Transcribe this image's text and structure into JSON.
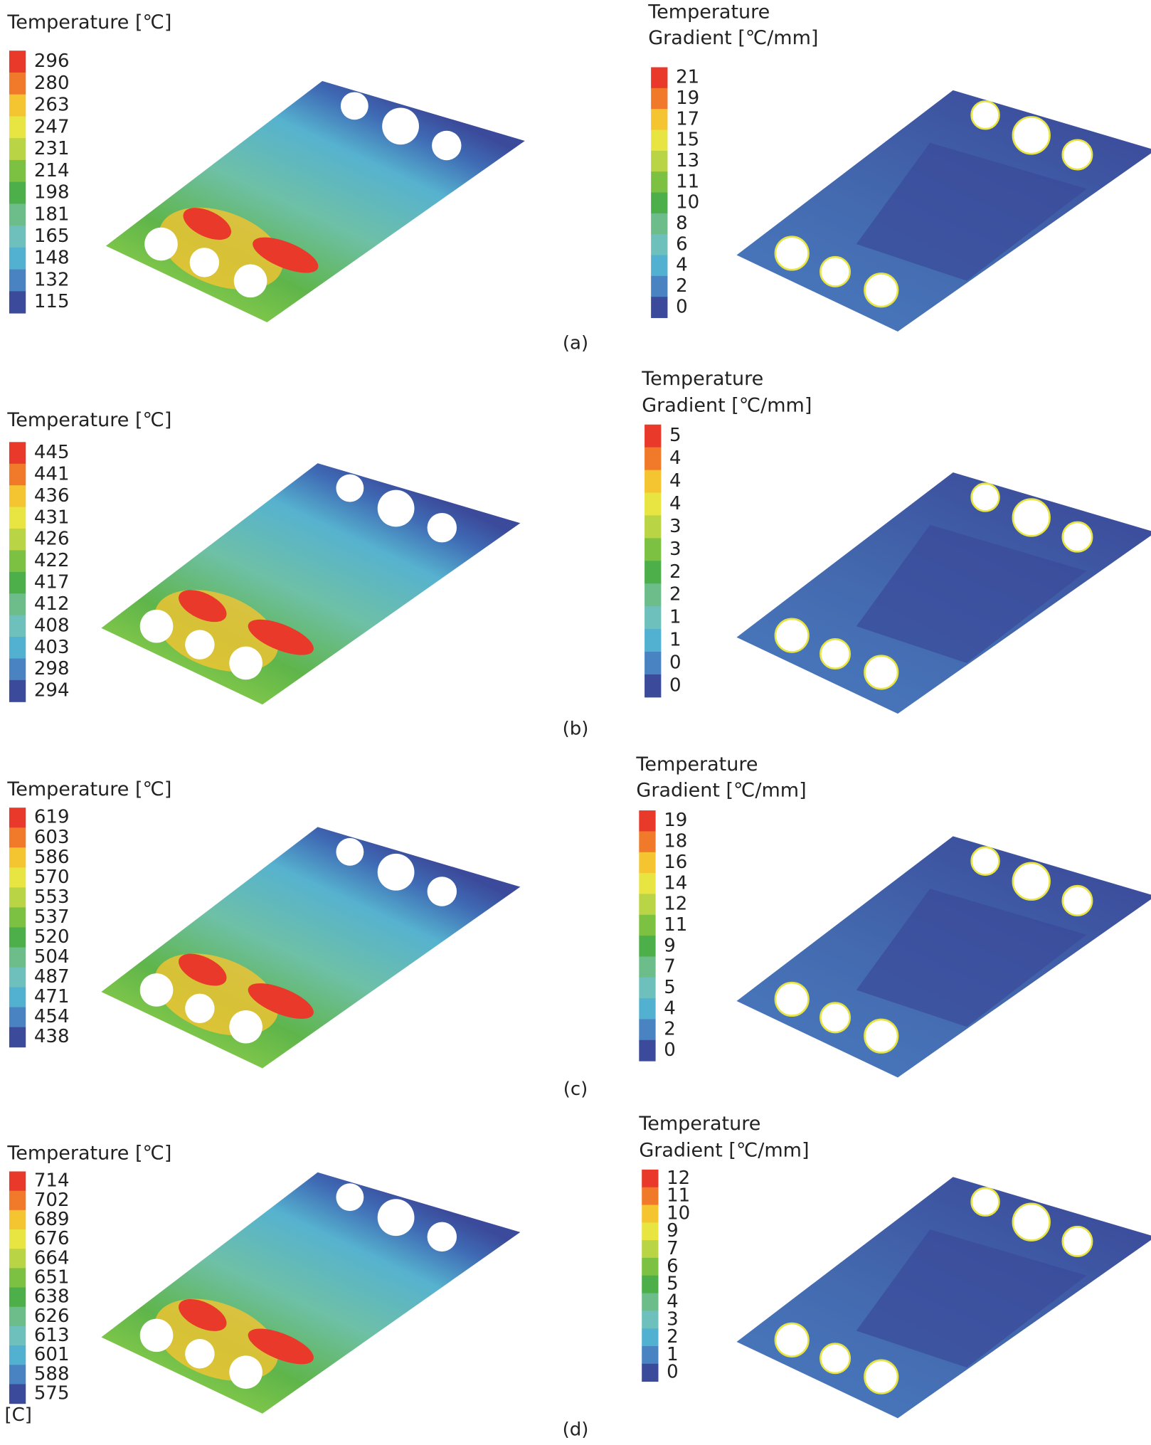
{
  "panels": [
    {
      "label": "(a)",
      "temperature": {
        "title": "Temperature [℃]",
        "labels": [
          296,
          280,
          263,
          247,
          231,
          214,
          198,
          181,
          165,
          148,
          132,
          115
        ]
      },
      "gradient": {
        "title_lines": [
          "Temperature",
          "Gradient [℃/mm]"
        ],
        "labels": [
          21,
          19,
          17,
          15,
          13,
          11,
          10,
          8,
          6,
          4,
          2,
          0
        ]
      }
    },
    {
      "label": "(b)",
      "temperature": {
        "title": "Temperature [℃]",
        "labels": [
          445,
          441,
          436,
          431,
          426,
          422,
          417,
          412,
          408,
          403,
          298,
          294
        ]
      },
      "gradient": {
        "title_lines": [
          "Temperature",
          "Gradient [℃/mm]"
        ],
        "labels": [
          5,
          4,
          4,
          4,
          3,
          3,
          2,
          2,
          1,
          1,
          0,
          0
        ]
      }
    },
    {
      "label": "(c)",
      "temperature": {
        "title": "Temperature [℃]",
        "labels": [
          619,
          603,
          586,
          570,
          553,
          537,
          520,
          504,
          487,
          471,
          454,
          438
        ]
      },
      "gradient": {
        "title_lines": [
          "Temperature",
          "Gradient [℃/mm]"
        ],
        "labels": [
          19,
          18,
          16,
          14,
          12,
          11,
          9,
          7,
          5,
          4,
          2,
          0
        ]
      }
    },
    {
      "label": "(d)",
      "temperature": {
        "title": "Temperature [℃]",
        "labels": [
          714,
          702,
          689,
          676,
          664,
          651,
          638,
          626,
          613,
          601,
          588,
          575
        ],
        "unit_note": "[C]"
      },
      "gradient": {
        "title_lines": [
          "Temperature",
          "Gradient [℃/mm]"
        ],
        "labels": [
          12,
          11,
          10,
          9,
          7,
          6,
          5,
          4,
          3,
          2,
          1,
          0
        ]
      }
    }
  ]
}
